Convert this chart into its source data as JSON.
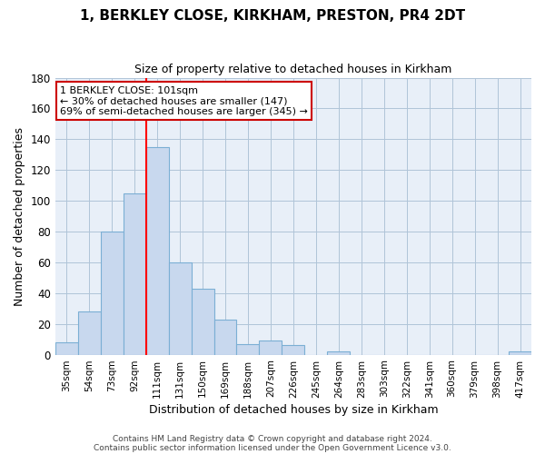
{
  "title": "1, BERKLEY CLOSE, KIRKHAM, PRESTON, PR4 2DT",
  "subtitle": "Size of property relative to detached houses in Kirkham",
  "xlabel": "Distribution of detached houses by size in Kirkham",
  "ylabel": "Number of detached properties",
  "bar_labels": [
    "35sqm",
    "54sqm",
    "73sqm",
    "92sqm",
    "111sqm",
    "131sqm",
    "150sqm",
    "169sqm",
    "188sqm",
    "207sqm",
    "226sqm",
    "245sqm",
    "264sqm",
    "283sqm",
    "303sqm",
    "322sqm",
    "341sqm",
    "360sqm",
    "379sqm",
    "398sqm",
    "417sqm"
  ],
  "bar_values": [
    8,
    28,
    80,
    105,
    135,
    60,
    43,
    23,
    7,
    9,
    6,
    0,
    2,
    0,
    0,
    0,
    0,
    0,
    0,
    0,
    2
  ],
  "bar_color": "#c8d8ee",
  "bar_edge_color": "#7bafd4",
  "ylim": [
    0,
    180
  ],
  "yticks": [
    0,
    20,
    40,
    60,
    80,
    100,
    120,
    140,
    160,
    180
  ],
  "red_line_x": 3.5,
  "annotation_title": "1 BERKLEY CLOSE: 101sqm",
  "annotation_line1": "← 30% of detached houses are smaller (147)",
  "annotation_line2": "69% of semi-detached houses are larger (345) →",
  "footer1": "Contains HM Land Registry data © Crown copyright and database right 2024.",
  "footer2": "Contains public sector information licensed under the Open Government Licence v3.0.",
  "background_color": "#ffffff",
  "plot_bg_color": "#e8eff8",
  "grid_color": "#b0c4d8"
}
